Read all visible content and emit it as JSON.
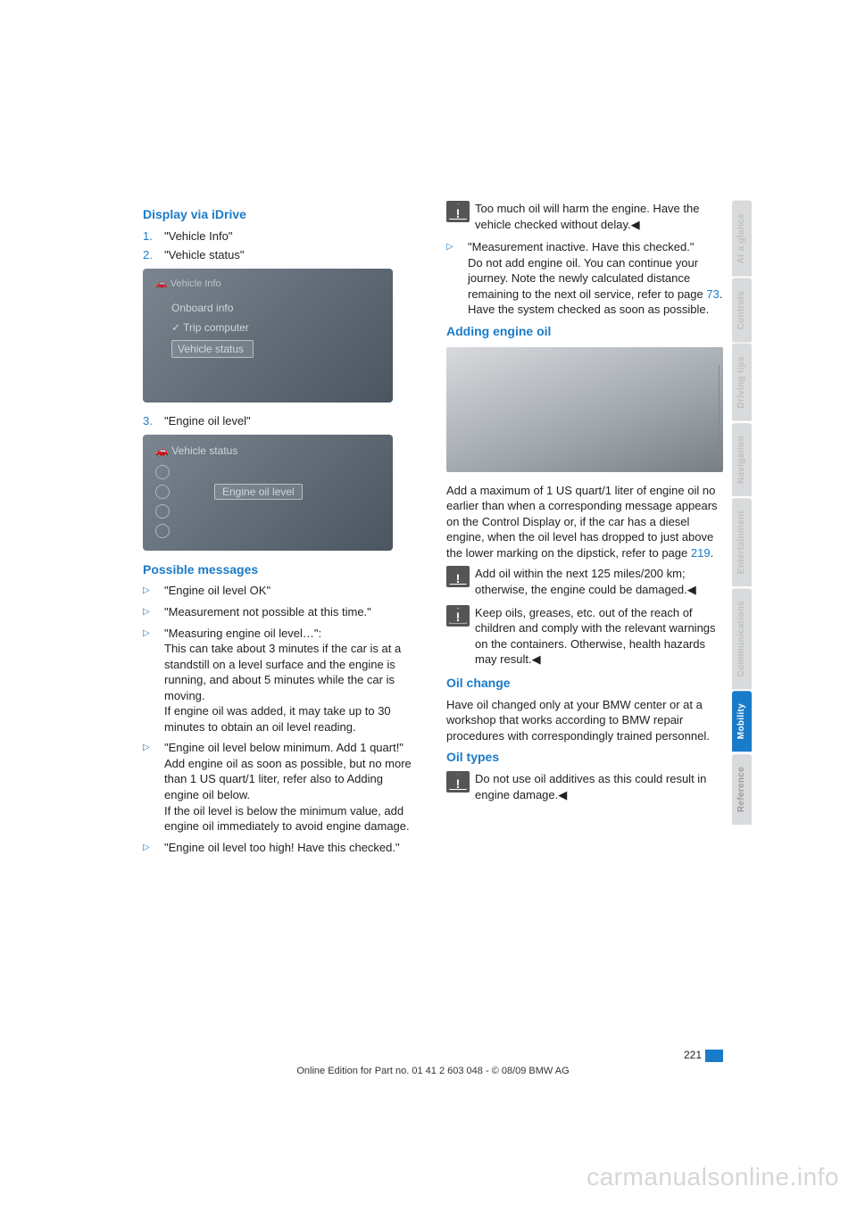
{
  "colors": {
    "accent": "#1a7bc9",
    "tab_inactive_bg": "#d9dadb",
    "tab_inactive_fg": "#bfc0c1"
  },
  "left": {
    "h1": "Display via iDrive",
    "step1_num": "1.",
    "step1": "\"Vehicle Info\"",
    "step2_num": "2.",
    "step2": "\"Vehicle status\"",
    "shot1_top": "🚗  Vehicle Info",
    "shot1_r1": "Onboard info",
    "shot1_r2": "✓  Trip computer",
    "shot1_r3": "Vehicle status",
    "step3_num": "3.",
    "step3": "\"Engine oil level\"",
    "shot2_top": "🚗  Vehicle status",
    "shot2_label": "Engine oil level",
    "h2": "Possible messages",
    "m1": "\"Engine oil level OK\"",
    "m2": "\"Measurement not possible at this time.\"",
    "m3a": "\"Measuring engine oil level…\":",
    "m3b": "This can take about 3 minutes if the car is at a standstill on a level surface and the engine is running, and about 5 minutes while the car is moving.",
    "m3c": "If engine oil was added, it may take up to 30 minutes to obtain an oil level reading.",
    "m4a": "\"Engine oil level below minimum. Add 1 quart!\"",
    "m4b": "Add engine oil as soon as possible, but no more than 1 US quart/1 liter, refer also to Adding engine oil below.",
    "m4c": "If the oil level is below the minimum value, add engine oil immediately to avoid engine damage.",
    "m5": "\"Engine oil level too high! Have this checked.\""
  },
  "right": {
    "warn1": "Too much oil will harm the engine. Have the vehicle checked without delay.◀",
    "m6a": "\"Measurement inactive. Have this checked.\"",
    "m6b_1": "Do not add engine oil. You can continue your journey. Note the newly calculated distance remaining to the next oil service, refer to page ",
    "m6b_link": "73",
    "m6b_2": ". Have the system checked as soon as possible.",
    "h3": "Adding engine oil",
    "add_p_1": "Add a maximum of 1 US quart/1 liter of engine oil no earlier than when a corresponding message appears on the Control Display or, if the car has a diesel engine, when the oil level has dropped to just above the lower marking on the dipstick, refer to page ",
    "add_link": "219",
    "add_p_2": ".",
    "warn2": "Add oil within the next 125 miles/200 km; otherwise, the engine could be damaged.◀",
    "warn3": "Keep oils, greases, etc. out of the reach of children and comply with the relevant warnings on the containers. Otherwise, health hazards may result.◀",
    "h4": "Oil change",
    "oilchange": "Have oil changed only at your BMW center or at a workshop that works according to BMW repair procedures with correspondingly trained personnel.",
    "h5": "Oil types",
    "warn4": "Do not use oil additives as this could result in engine damage.◀"
  },
  "tabs": {
    "t1": "At a glance",
    "t2": "Controls",
    "t3": "Driving tips",
    "t4": "Navigation",
    "t5": "Entertainment",
    "t6": "Communications",
    "t7": "Mobility",
    "t8": "Reference"
  },
  "page_number": "221",
  "footer": "Online Edition for Part no. 01 41 2 603 048 - © 08/09 BMW AG",
  "watermark": "carmanualsonline.info",
  "bullet": "▷"
}
